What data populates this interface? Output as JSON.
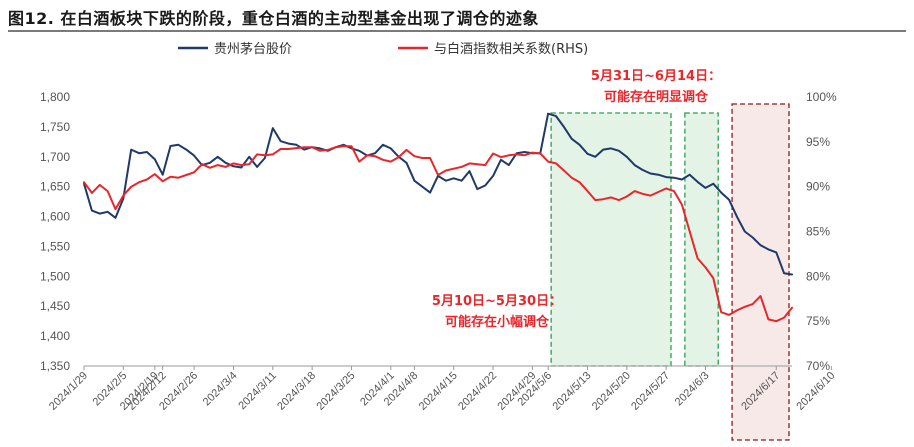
{
  "figure_title": "图12. 在白酒板块下跌的阶段，重仓白酒的主动型基金出现了调仓的迹象",
  "chart_data": {
    "type": "line",
    "x": [
      "2024/1/29",
      "2024/1/30",
      "2024/1/31",
      "2024/2/1",
      "2024/2/2",
      "2024/2/5",
      "2024/2/6",
      "2024/2/7",
      "2024/2/8",
      "2024/2/19",
      "2024/2/20",
      "2024/2/21",
      "2024/2/22",
      "2024/2/23",
      "2024/2/26",
      "2024/2/27",
      "2024/2/28",
      "2024/2/29",
      "2024/3/1",
      "2024/3/4",
      "2024/3/5",
      "2024/3/6",
      "2024/3/7",
      "2024/3/8",
      "2024/3/11",
      "2024/3/12",
      "2024/3/13",
      "2024/3/14",
      "2024/3/15",
      "2024/3/18",
      "2024/3/19",
      "2024/3/20",
      "2024/3/21",
      "2024/3/22",
      "2024/3/25",
      "2024/3/26",
      "2024/3/27",
      "2024/3/28",
      "2024/3/29",
      "2024/4/1",
      "2024/4/2",
      "2024/4/3",
      "2024/4/8",
      "2024/4/9",
      "2024/4/10",
      "2024/4/11",
      "2024/4/12",
      "2024/4/15",
      "2024/4/16",
      "2024/4/17",
      "2024/4/18",
      "2024/4/19",
      "2024/4/22",
      "2024/4/23",
      "2024/4/24",
      "2024/4/25",
      "2024/4/26",
      "2024/4/29",
      "2024/4/30",
      "2024/5/6",
      "2024/5/7",
      "2024/5/8",
      "2024/5/9",
      "2024/5/10",
      "2024/5/13",
      "2024/5/14",
      "2024/5/15",
      "2024/5/16",
      "2024/5/17",
      "2024/5/20",
      "2024/5/21",
      "2024/5/22",
      "2024/5/23",
      "2024/5/24",
      "2024/5/27",
      "2024/5/28",
      "2024/5/29",
      "2024/5/30",
      "2024/5/31",
      "2024/6/3",
      "2024/6/4",
      "2024/6/5",
      "2024/6/6",
      "2024/6/7",
      "2024/6/11",
      "2024/6/12",
      "2024/6/13",
      "2024/6/14",
      "2024/6/17",
      "2024/6/18",
      "2024/6/19"
    ],
    "x_tick_labels": [
      "2024/1/29",
      "2024/2/5",
      "2024/2/12",
      "2024/2/19",
      "2024/2/26",
      "2024/3/4",
      "2024/3/11",
      "2024/3/18",
      "2024/3/25",
      "2024/4/1",
      "2024/4/8",
      "2024/4/15",
      "2024/4/22",
      "2024/4/29",
      "2024/5/6",
      "2024/5/13",
      "2024/5/20",
      "2024/5/27",
      "2024/6/3",
      "2024/6/10",
      "2024/6/17"
    ],
    "y_left": {
      "ticks": [
        "1,350",
        "1,400",
        "1,450",
        "1,500",
        "1,550",
        "1,600",
        "1,650",
        "1,700",
        "1,750",
        "1,800"
      ],
      "lim": [
        1350,
        1800
      ]
    },
    "y_right": {
      "ticks": [
        "70%",
        "75%",
        "80%",
        "85%",
        "90%",
        "95%",
        "100%"
      ],
      "lim": [
        0.7,
        1.0
      ]
    },
    "series": [
      {
        "name": "贵州茅台股价",
        "axis": "left",
        "color": "#1f3a68",
        "values": [
          1655,
          1610,
          1605,
          1608,
          1598,
          1630,
          1712,
          1706,
          1708,
          1696,
          1670,
          1718,
          1720,
          1712,
          1702,
          1686,
          1690,
          1700,
          1690,
          1684,
          1682,
          1700,
          1683,
          1698,
          1748,
          1726,
          1722,
          1720,
          1712,
          1716,
          1714,
          1710,
          1716,
          1720,
          1714,
          1710,
          1702,
          1706,
          1720,
          1714,
          1700,
          1690,
          1660,
          1650,
          1640,
          1668,
          1660,
          1664,
          1660,
          1676,
          1646,
          1652,
          1668,
          1695,
          1686,
          1706,
          1708,
          1706,
          1706,
          1772,
          1768,
          1750,
          1730,
          1720,
          1705,
          1700,
          1712,
          1714,
          1710,
          1700,
          1686,
          1678,
          1672,
          1670,
          1666,
          1665,
          1662,
          1670,
          1658,
          1648,
          1655,
          1640,
          1628,
          1600,
          1575,
          1565,
          1552,
          1545,
          1540,
          1505,
          1503
        ]
      },
      {
        "name": "与白酒指数相关系数(RHS)",
        "axis": "right",
        "color": "#e8262b",
        "values": [
          0.905,
          0.893,
          0.902,
          0.895,
          0.875,
          0.89,
          0.9,
          0.905,
          0.908,
          0.914,
          0.906,
          0.911,
          0.91,
          0.913,
          0.916,
          0.925,
          0.921,
          0.924,
          0.922,
          0.926,
          0.924,
          0.925,
          0.936,
          0.935,
          0.936,
          0.942,
          0.942,
          0.943,
          0.944,
          0.944,
          0.94,
          0.941,
          0.944,
          0.945,
          0.945,
          0.928,
          0.935,
          0.934,
          0.93,
          0.928,
          0.933,
          0.941,
          0.934,
          0.932,
          0.932,
          0.913,
          0.918,
          0.92,
          0.922,
          0.926,
          0.925,
          0.924,
          0.937,
          0.933,
          0.935,
          0.936,
          0.935,
          0.938,
          0.937,
          0.928,
          0.926,
          0.918,
          0.91,
          0.905,
          0.895,
          0.885,
          0.886,
          0.888,
          0.885,
          0.889,
          0.895,
          0.892,
          0.89,
          0.894,
          0.898,
          0.895,
          0.88,
          0.85,
          0.82,
          0.81,
          0.798,
          0.76,
          0.757,
          0.762,
          0.766,
          0.769,
          0.778,
          0.752,
          0.75,
          0.754,
          0.765
        ]
      }
    ],
    "legend": {
      "placement": "top"
    },
    "annotations": [
      {
        "lines": [
          "5月31日~6月14日：",
          "可能存在明显调仓"
        ],
        "color": "#e8262b"
      },
      {
        "lines": [
          "5月10日~5月30日：",
          "可能存在小幅调仓"
        ],
        "color": "#e8262b"
      }
    ],
    "highlight_periods": [
      {
        "from": "2024/5/6",
        "to": "2024/5/28",
        "style": "green-dashed"
      },
      {
        "from": "2024/5/29",
        "to": "2024/6/5",
        "style": "green-dashed"
      },
      {
        "from": "2024/6/6",
        "to": "2024/6/19",
        "style": "red-dashed"
      }
    ],
    "grid": false
  }
}
